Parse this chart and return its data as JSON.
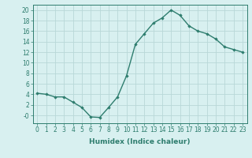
{
  "x": [
    0,
    1,
    2,
    3,
    4,
    5,
    6,
    7,
    8,
    9,
    10,
    11,
    12,
    13,
    14,
    15,
    16,
    17,
    18,
    19,
    20,
    21,
    22,
    23
  ],
  "y": [
    4.2,
    4.0,
    3.5,
    3.5,
    2.5,
    1.5,
    -0.3,
    -0.4,
    1.5,
    3.5,
    7.5,
    13.5,
    15.5,
    17.5,
    18.5,
    20.0,
    19.0,
    17.0,
    16.0,
    15.5,
    14.5,
    13.0,
    12.5,
    12.0
  ],
  "line_color": "#2e7d6e",
  "marker": "D",
  "marker_size": 1.8,
  "marker_color": "#2e7d6e",
  "bg_color": "#d8f0f0",
  "grid_color": "#b8d8d8",
  "xlabel": "Humidex (Indice chaleur)",
  "xlim": [
    -0.5,
    23.5
  ],
  "ylim": [
    -1.5,
    21
  ],
  "yticks": [
    0,
    2,
    4,
    6,
    8,
    10,
    12,
    14,
    16,
    18,
    20
  ],
  "ytick_labels": [
    "-0",
    "2",
    "4",
    "6",
    "8",
    "10",
    "12",
    "14",
    "16",
    "18",
    "20"
  ],
  "xticks": [
    0,
    1,
    2,
    3,
    4,
    5,
    6,
    7,
    8,
    9,
    10,
    11,
    12,
    13,
    14,
    15,
    16,
    17,
    18,
    19,
    20,
    21,
    22,
    23
  ],
  "line_width": 1.0,
  "tick_fontsize": 5.5,
  "xlabel_fontsize": 6.5,
  "xlabel_fontweight": "bold"
}
